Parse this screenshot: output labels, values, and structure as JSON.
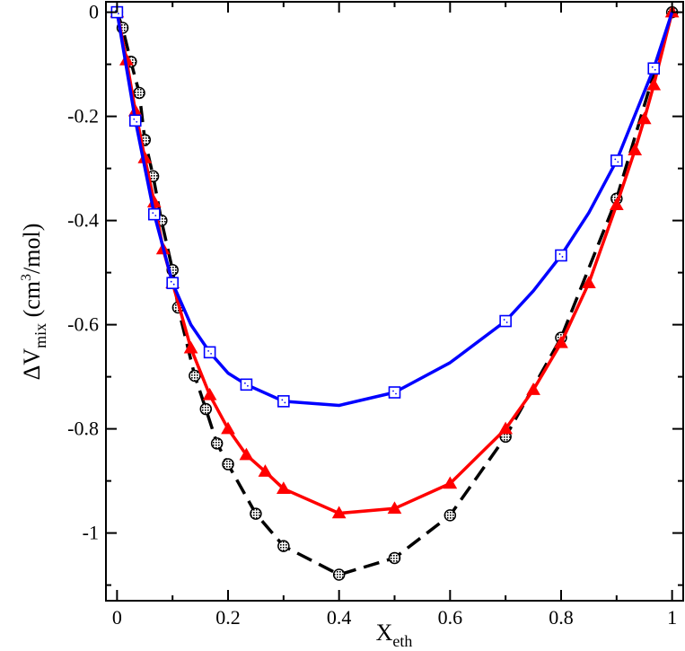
{
  "chart_data": {
    "type": "line",
    "title": "",
    "xlabel": {
      "base": "X",
      "sub": "eth"
    },
    "ylabel": {
      "prefix": "ΔV",
      "sub": "mix",
      "middle": " (cm",
      "sup": "3",
      "suffix": "/mol)"
    },
    "xlim": [
      -0.02,
      1.02
    ],
    "ylim": [
      -1.13,
      0.02
    ],
    "x_ticks": [
      0,
      0.2,
      0.4,
      0.6,
      0.8,
      1
    ],
    "x_tick_labels": [
      "0",
      "0.2",
      "0.4",
      "0.6",
      "0.8",
      "1"
    ],
    "y_ticks": [
      0,
      -0.2,
      -0.4,
      -0.6,
      -0.8,
      -1
    ],
    "y_tick_labels": [
      "0",
      "-0.2",
      "-0.4",
      "-0.6",
      "-0.8",
      "-1"
    ],
    "grid": false,
    "series": [
      {
        "name": "black dashed circles",
        "color": "#000000",
        "line_style": "dashed",
        "marker": "circle",
        "line": {
          "x": [
            0,
            0.01,
            0.025,
            0.04,
            0.05,
            0.065,
            0.08,
            0.1,
            0.11,
            0.14,
            0.16,
            0.18,
            0.2,
            0.25,
            0.3,
            0.4,
            0.5,
            0.6,
            0.7,
            0.8,
            0.9,
            1
          ],
          "y": [
            0,
            -0.03,
            -0.095,
            -0.155,
            -0.245,
            -0.315,
            -0.4,
            -0.495,
            -0.567,
            -0.698,
            -0.762,
            -0.828,
            -0.868,
            -0.963,
            -1.025,
            -1.08,
            -1.048,
            -0.966,
            -0.815,
            -0.625,
            -0.358,
            0
          ]
        },
        "markers": {
          "x": [
            0,
            0.01,
            0.025,
            0.04,
            0.05,
            0.065,
            0.08,
            0.1,
            0.11,
            0.14,
            0.16,
            0.18,
            0.2,
            0.25,
            0.3,
            0.4,
            0.5,
            0.6,
            0.7,
            0.8,
            0.9,
            1
          ],
          "y": [
            0,
            -0.03,
            -0.095,
            -0.155,
            -0.245,
            -0.315,
            -0.4,
            -0.495,
            -0.567,
            -0.698,
            -0.762,
            -0.828,
            -0.868,
            -0.963,
            -1.025,
            -1.08,
            -1.048,
            -0.966,
            -0.815,
            -0.625,
            -0.358,
            0
          ]
        }
      },
      {
        "name": "red triangles",
        "color": "#ff0000",
        "line_style": "solid",
        "marker": "triangle",
        "line": {
          "x": [
            0,
            0.017,
            0.033,
            0.05,
            0.067,
            0.083,
            0.1,
            0.133,
            0.167,
            0.2,
            0.233,
            0.267,
            0.3,
            0.4,
            0.5,
            0.6,
            0.7,
            0.75,
            0.8,
            0.85,
            0.9,
            0.933,
            0.95,
            0.967,
            1
          ],
          "y": [
            0,
            -0.092,
            -0.19,
            -0.28,
            -0.365,
            -0.455,
            -0.52,
            -0.645,
            -0.735,
            -0.8,
            -0.85,
            -0.882,
            -0.915,
            -0.962,
            -0.953,
            -0.905,
            -0.8,
            -0.725,
            -0.635,
            -0.52,
            -0.37,
            -0.265,
            -0.205,
            -0.14,
            0
          ]
        },
        "markers": {
          "x": [
            0,
            0.017,
            0.033,
            0.05,
            0.067,
            0.083,
            0.1,
            0.133,
            0.167,
            0.2,
            0.233,
            0.267,
            0.3,
            0.4,
            0.5,
            0.6,
            0.7,
            0.75,
            0.8,
            0.85,
            0.9,
            0.933,
            0.95,
            0.967,
            1
          ],
          "y": [
            0,
            -0.092,
            -0.19,
            -0.28,
            -0.365,
            -0.455,
            -0.52,
            -0.645,
            -0.735,
            -0.8,
            -0.85,
            -0.882,
            -0.915,
            -0.962,
            -0.953,
            -0.905,
            -0.8,
            -0.725,
            -0.635,
            -0.52,
            -0.37,
            -0.265,
            -0.205,
            -0.14,
            0
          ]
        }
      },
      {
        "name": "blue squares",
        "color": "#0000ff",
        "line_style": "solid",
        "marker": "square",
        "line": {
          "x": [
            0,
            0.033,
            0.067,
            0.1,
            0.133,
            0.167,
            0.2,
            0.233,
            0.3,
            0.4,
            0.5,
            0.6,
            0.7,
            0.75,
            0.8,
            0.85,
            0.9,
            0.967,
            1
          ],
          "y": [
            0,
            -0.208,
            -0.388,
            -0.52,
            -0.6,
            -0.653,
            -0.693,
            -0.715,
            -0.747,
            -0.755,
            -0.73,
            -0.673,
            -0.593,
            -0.535,
            -0.467,
            -0.385,
            -0.285,
            -0.108,
            0
          ]
        },
        "markers": {
          "x": [
            0,
            0.033,
            0.067,
            0.1,
            0.167,
            0.233,
            0.3,
            0.5,
            0.7,
            0.8,
            0.9,
            0.967
          ],
          "y": [
            0,
            -0.208,
            -0.388,
            -0.52,
            -0.653,
            -0.715,
            -0.747,
            -0.73,
            -0.593,
            -0.467,
            -0.285,
            -0.108
          ]
        }
      }
    ]
  }
}
